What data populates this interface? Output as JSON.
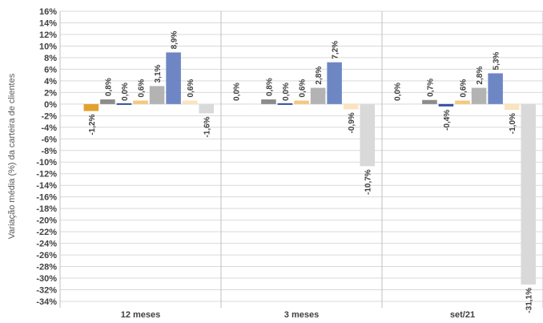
{
  "chart_data": {
    "type": "bar",
    "title": "",
    "xlabel": "",
    "ylabel": "Variação média (%) da carteira de clientes",
    "categories": [
      "12 meses",
      "3 meses",
      "set/21"
    ],
    "ylim": [
      -34,
      16
    ],
    "ytick_step": 2,
    "grid": true,
    "legend": "none",
    "series": [
      {
        "color": "#e8e8e8",
        "values": [
          null,
          0.0,
          0.0
        ],
        "labels": [
          "",
          "0,0%",
          "0,0%"
        ]
      },
      {
        "color": "#e3a12f",
        "values": [
          -1.2,
          null,
          null
        ],
        "labels": [
          "-1,2%",
          "",
          ""
        ]
      },
      {
        "color": "#8c8c8c",
        "values": [
          0.8,
          0.8,
          0.7
        ],
        "labels": [
          "0,8%",
          "0,8%",
          "0,7%"
        ]
      },
      {
        "color": "#2e4d9c",
        "values": [
          0.0,
          0.0,
          -0.4
        ],
        "labels": [
          "0,0%",
          "0,0%",
          "-0,4%"
        ]
      },
      {
        "color": "#f4c97e",
        "values": [
          0.6,
          0.6,
          0.6
        ],
        "labels": [
          "0,6%",
          "0,6%",
          "0,6%"
        ]
      },
      {
        "color": "#b3b3b3",
        "values": [
          3.1,
          2.8,
          2.8
        ],
        "labels": [
          "3,1%",
          "2,8%",
          "2,8%"
        ]
      },
      {
        "color": "#6e87c4",
        "values": [
          8.9,
          7.2,
          5.3
        ],
        "labels": [
          "8,9%",
          "7,2%",
          "5,3%"
        ]
      },
      {
        "color": "#fbe3bf",
        "values": [
          0.6,
          -0.9,
          -1.0
        ],
        "labels": [
          "0,6%",
          "-0,9%",
          "-1,0%"
        ]
      },
      {
        "color": "#d9d9d9",
        "values": [
          -1.6,
          -10.7,
          -31.1
        ],
        "labels": [
          "-1,6%",
          "-10,7%",
          "-31,1%"
        ]
      }
    ]
  }
}
